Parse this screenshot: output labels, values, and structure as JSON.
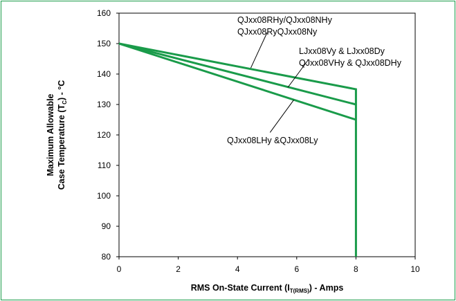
{
  "chart_data": {
    "type": "line",
    "x_ticks": [
      0,
      2,
      4,
      6,
      8,
      10
    ],
    "y_ticks": [
      80,
      90,
      100,
      110,
      120,
      130,
      140,
      150,
      160
    ],
    "xlim": [
      0,
      10
    ],
    "ylim": [
      80,
      160
    ],
    "grid": false,
    "xlabel_parts": [
      "RMS On-State Current (I",
      "T(RMS)",
      ") - Amps"
    ],
    "ylabel_line1": "Maximum Allowable",
    "ylabel_line2_parts": [
      "Case Temperature (T",
      "C",
      ") - °C"
    ],
    "line_color": "#1a9b4a",
    "series": [
      {
        "x": [
          0,
          8,
          8
        ],
        "y": [
          150,
          135,
          80
        ]
      },
      {
        "x": [
          0,
          8
        ],
        "y": [
          150,
          130
        ]
      },
      {
        "x": [
          0,
          8
        ],
        "y": [
          150,
          125
        ]
      }
    ],
    "annotations": [
      {
        "lines": [
          "QJxx08RHy/QJxx08NHy",
          "QJxx08RyQJxx08Ny"
        ],
        "pointer_from": [
          4.45,
          142
        ],
        "pointer_to": [
          5.0,
          153.6
        ]
      },
      {
        "lines": [
          "LJxx08Vy & LJxx08Dy",
          "QJxx08VHy & QJxx08DHy"
        ],
        "pointer_from": [
          5.7,
          135.6
        ],
        "pointer_to": [
          6.4,
          144.8
        ]
      },
      {
        "lines": [
          "QJxx08LHy &QJxx08Ly"
        ],
        "pointer_from": [
          5.9,
          131.5
        ],
        "pointer_to": [
          5.1,
          120.8
        ]
      }
    ]
  }
}
